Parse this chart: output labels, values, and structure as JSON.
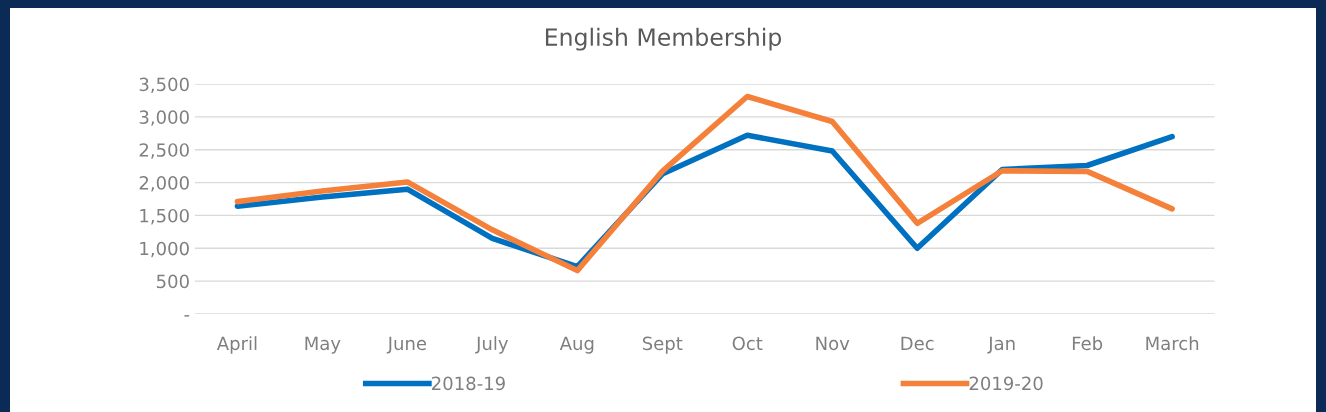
{
  "chart_data": {
    "type": "line",
    "title": "English Membership",
    "categories": [
      "April",
      "May",
      "June",
      "July",
      "Aug",
      "Sept",
      "Oct",
      "Nov",
      "Dec",
      "Jan",
      "Feb",
      "March"
    ],
    "series": [
      {
        "name": "2018-19",
        "color": "#0070c0",
        "values": [
          1640,
          1780,
          1900,
          1150,
          720,
          2130,
          2720,
          2480,
          1000,
          2200,
          2260,
          2700
        ]
      },
      {
        "name": "2019-20",
        "color": "#f4803a",
        "values": [
          1710,
          1870,
          2010,
          1280,
          660,
          2170,
          3310,
          2930,
          1380,
          2180,
          2170,
          1600
        ]
      }
    ],
    "ylim": [
      0,
      3500
    ],
    "yticks": [
      {
        "value": 0,
        "label": "-"
      },
      {
        "value": 500,
        "label": "500"
      },
      {
        "value": 1000,
        "label": "1,000"
      },
      {
        "value": 1500,
        "label": "1,500"
      },
      {
        "value": 2000,
        "label": "2,000"
      },
      {
        "value": 2500,
        "label": "2,500"
      },
      {
        "value": 3000,
        "label": "3,000"
      },
      {
        "value": 3500,
        "label": "3,500"
      }
    ],
    "grid": "y",
    "legend": "bottom",
    "marker": "none",
    "line_style": "solid"
  }
}
